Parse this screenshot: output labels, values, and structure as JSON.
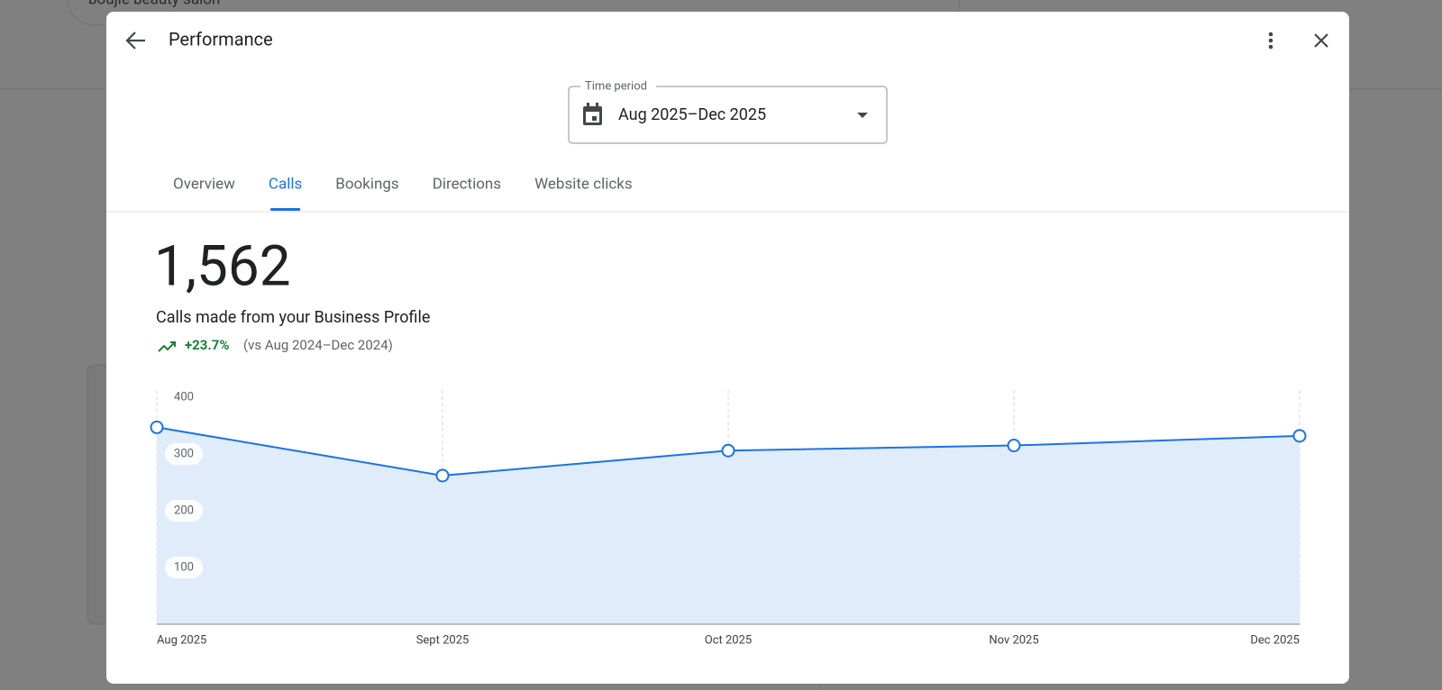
{
  "background": {
    "search_query": "boujie beauty salon"
  },
  "header": {
    "title": "Performance"
  },
  "time_period": {
    "label": "Time period",
    "value": "Aug 2025–Dec 2025"
  },
  "tabs": [
    {
      "label": "Overview",
      "selected": false
    },
    {
      "label": "Calls",
      "selected": true
    },
    {
      "label": "Bookings",
      "selected": false
    },
    {
      "label": "Directions",
      "selected": false
    },
    {
      "label": "Website clicks",
      "selected": false
    }
  ],
  "summary": {
    "total": "1,562",
    "description": "Calls made from your Business Profile",
    "change": "+23.7%",
    "comparison": "(vs Aug 2024–Dec 2024)"
  },
  "chart_data": {
    "type": "area",
    "categories": [
      "Aug 2025",
      "Sept 2025",
      "Oct 2025",
      "Nov 2025",
      "Dec 2025"
    ],
    "values": [
      347,
      262,
      306,
      315,
      332
    ],
    "color": "#1a73e8",
    "fill": "#e1ecfb",
    "ylim": [
      0,
      400
    ],
    "yticks": [
      100,
      200,
      300,
      400
    ]
  }
}
